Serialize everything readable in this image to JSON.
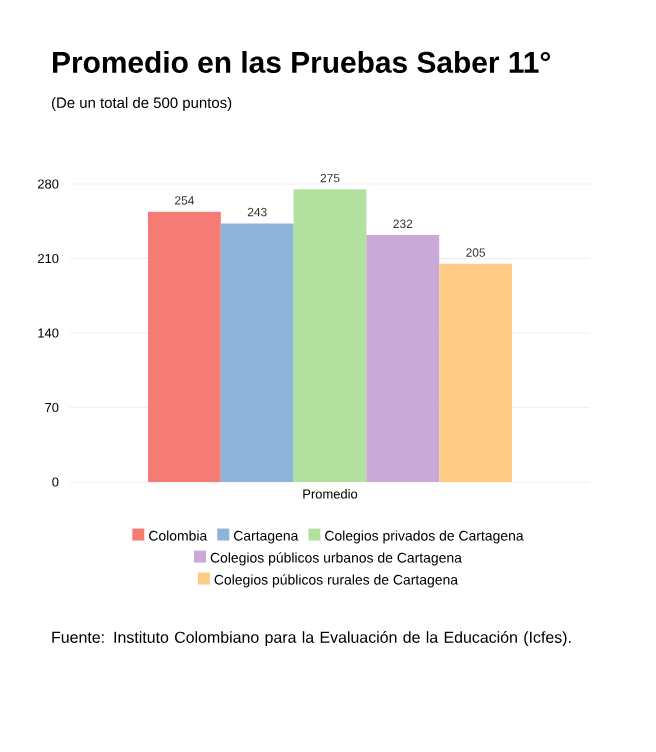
{
  "chart_data": {
    "type": "bar",
    "title": "Promedio en las Pruebas Saber 11°",
    "subtitle": "(De un total de 500 puntos)",
    "categories": [
      "Promedio"
    ],
    "series": [
      {
        "name": "Colombia",
        "color": "#f47c74",
        "values": [
          254
        ]
      },
      {
        "name": "Cartagena",
        "color": "#8fb4d9",
        "values": [
          243
        ]
      },
      {
        "name": "Colegios privados de Cartagena",
        "color": "#b2e09e",
        "values": [
          275
        ]
      },
      {
        "name": "Colegios públicos urbanos de Cartagena",
        "color": "#c9a9d6",
        "values": [
          232
        ]
      },
      {
        "name": "Colegios públicos rurales de Cartagena",
        "color": "#fdcb84",
        "values": [
          205
        ]
      }
    ],
    "ylim": [
      0,
      280
    ],
    "yticks": [
      0,
      70,
      140,
      210,
      280
    ],
    "grid": "y",
    "legend": "bottom",
    "data_labels": true,
    "annotations": [
      "Fuente:  Instituto Colombiano para la Evaluación de la Educación (Icfes)."
    ]
  }
}
